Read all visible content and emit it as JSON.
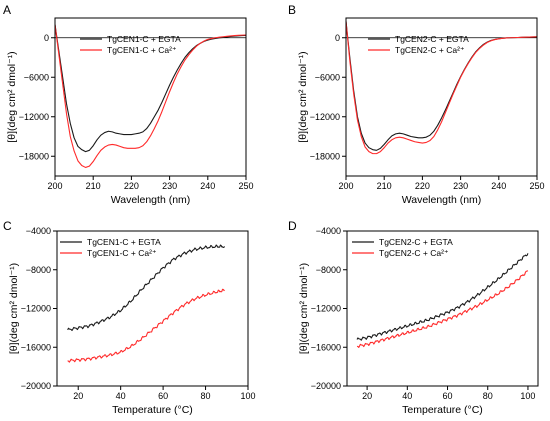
{
  "chart_data": [
    {
      "panel": "A",
      "type": "line",
      "xlabel": "Wavelength (nm)",
      "ylabel": "[θ](deg cm² dmol⁻¹)",
      "xlim": [
        200,
        250
      ],
      "ylim": [
        -21000,
        3000
      ],
      "xticks": [
        200,
        210,
        220,
        230,
        240,
        250
      ],
      "yticks": [
        0,
        -6000,
        -12000,
        -18000
      ],
      "zero_line": true,
      "legend_position": "upper-middle",
      "series": [
        {
          "name": "TgCEN1-C + EGTA",
          "color": "#1a1a1a",
          "x": [
            200,
            201,
            202,
            203,
            204,
            205,
            206,
            207,
            208,
            209,
            210,
            211,
            212,
            213,
            214,
            215,
            216,
            217,
            218,
            219,
            220,
            221,
            222,
            223,
            224,
            225,
            226,
            227,
            228,
            229,
            230,
            231,
            232,
            233,
            234,
            235,
            236,
            237,
            238,
            239,
            240,
            241,
            242,
            243,
            244,
            245,
            246,
            247,
            248,
            249,
            250
          ],
          "y": [
            2000,
            -2000,
            -6000,
            -10000,
            -13000,
            -15200,
            -16500,
            -17000,
            -17300,
            -17100,
            -16400,
            -15500,
            -14800,
            -14400,
            -14200,
            -14300,
            -14500,
            -14600,
            -14700,
            -14700,
            -14700,
            -14600,
            -14500,
            -14300,
            -13800,
            -13000,
            -12000,
            -11000,
            -9800,
            -8500,
            -7200,
            -6000,
            -4900,
            -3900,
            -3000,
            -2300,
            -1700,
            -1200,
            -850,
            -550,
            -350,
            -200,
            -100,
            -20,
            50,
            120,
            200,
            260,
            300,
            330,
            350
          ]
        },
        {
          "name": "TgCEN1-C + Ca²⁺",
          "color": "#ff2a2a",
          "x": [
            200,
            201,
            202,
            203,
            204,
            205,
            206,
            207,
            208,
            209,
            210,
            211,
            212,
            213,
            214,
            215,
            216,
            217,
            218,
            219,
            220,
            221,
            222,
            223,
            224,
            225,
            226,
            227,
            228,
            229,
            230,
            231,
            232,
            233,
            234,
            235,
            236,
            237,
            238,
            239,
            240,
            241,
            242,
            243,
            244,
            245,
            246,
            247,
            248,
            249,
            250
          ],
          "y": [
            2000,
            -2500,
            -7000,
            -11500,
            -15000,
            -17200,
            -18700,
            -19400,
            -19700,
            -19500,
            -18800,
            -17900,
            -17100,
            -16600,
            -16300,
            -16200,
            -16300,
            -16500,
            -16700,
            -16800,
            -16800,
            -16800,
            -16700,
            -16400,
            -15800,
            -14900,
            -13800,
            -12600,
            -11200,
            -9700,
            -8200,
            -6800,
            -5500,
            -4400,
            -3400,
            -2600,
            -1900,
            -1300,
            -850,
            -500,
            -250,
            -100,
            0,
            80,
            150,
            220,
            280,
            330,
            370,
            400,
            420
          ]
        }
      ]
    },
    {
      "panel": "B",
      "type": "line",
      "xlabel": "Wavelength (nm)",
      "ylabel": "[θ](deg cm² dmol⁻¹)",
      "xlim": [
        200,
        250
      ],
      "ylim": [
        -21000,
        3000
      ],
      "xticks": [
        200,
        210,
        220,
        230,
        240,
        250
      ],
      "yticks": [
        0,
        -6000,
        -12000,
        -18000
      ],
      "zero_line": true,
      "legend_position": "upper-middle",
      "series": [
        {
          "name": "TgCEN2-C + EGTA",
          "color": "#1a1a1a",
          "x": [
            200,
            201,
            202,
            203,
            204,
            205,
            206,
            207,
            208,
            209,
            210,
            211,
            212,
            213,
            214,
            215,
            216,
            217,
            218,
            219,
            220,
            221,
            222,
            223,
            224,
            225,
            226,
            227,
            228,
            229,
            230,
            231,
            232,
            233,
            234,
            235,
            236,
            237,
            238,
            239,
            240,
            241,
            242,
            243,
            244,
            245,
            246,
            247,
            248,
            249,
            250
          ],
          "y": [
            2500,
            -3000,
            -8000,
            -12000,
            -14500,
            -16000,
            -16700,
            -17000,
            -17100,
            -16800,
            -16200,
            -15500,
            -14900,
            -14600,
            -14500,
            -14600,
            -14800,
            -15000,
            -15100,
            -15200,
            -15200,
            -15100,
            -14800,
            -14200,
            -13300,
            -12200,
            -11000,
            -9700,
            -8400,
            -7100,
            -5900,
            -4800,
            -3800,
            -2900,
            -2100,
            -1500,
            -1000,
            -650,
            -400,
            -250,
            -150,
            -80,
            -30,
            0,
            20,
            40,
            60,
            80,
            100,
            120,
            150
          ]
        },
        {
          "name": "TgCEN2-C + Ca²⁺",
          "color": "#ff2a2a",
          "x": [
            200,
            201,
            202,
            203,
            204,
            205,
            206,
            207,
            208,
            209,
            210,
            211,
            212,
            213,
            214,
            215,
            216,
            217,
            218,
            219,
            220,
            221,
            222,
            223,
            224,
            225,
            226,
            227,
            228,
            229,
            230,
            231,
            232,
            233,
            234,
            235,
            236,
            237,
            238,
            239,
            240,
            241,
            242,
            243,
            244,
            245,
            246,
            247,
            248,
            249,
            250
          ],
          "y": [
            2500,
            -3500,
            -8500,
            -12500,
            -15000,
            -16600,
            -17300,
            -17600,
            -17600,
            -17300,
            -16700,
            -16000,
            -15500,
            -15200,
            -15100,
            -15200,
            -15400,
            -15600,
            -15800,
            -15900,
            -16000,
            -15900,
            -15600,
            -15000,
            -14000,
            -12800,
            -11400,
            -10000,
            -8600,
            -7300,
            -6000,
            -4900,
            -3900,
            -3000,
            -2200,
            -1600,
            -1100,
            -700,
            -450,
            -280,
            -160,
            -80,
            -30,
            0,
            20,
            40,
            60,
            80,
            100,
            120,
            150
          ]
        }
      ]
    },
    {
      "panel": "C",
      "type": "line",
      "xlabel": "Temperature (°C)",
      "ylabel": "[θ](deg cm² dmol⁻¹)",
      "xlim": [
        10,
        100
      ],
      "ylim": [
        -20000,
        -4000
      ],
      "xticks": [
        20,
        40,
        60,
        80,
        100
      ],
      "yticks": [
        -4000,
        -8000,
        -12000,
        -16000,
        -20000
      ],
      "legend_position": "top-left",
      "series": [
        {
          "name": "TgCEN1-C + EGTA",
          "color": "#1a1a1a",
          "x": [
            15,
            20,
            25,
            30,
            35,
            40,
            45,
            50,
            55,
            60,
            65,
            70,
            75,
            80,
            85,
            89
          ],
          "y": [
            -14200,
            -14000,
            -13800,
            -13400,
            -12900,
            -12200,
            -11200,
            -10000,
            -8900,
            -7800,
            -6900,
            -6300,
            -5900,
            -5700,
            -5600,
            -5600
          ]
        },
        {
          "name": "TgCEN1-C + Ca²⁺",
          "color": "#ff2a2a",
          "x": [
            15,
            20,
            25,
            30,
            35,
            40,
            45,
            50,
            55,
            60,
            65,
            70,
            75,
            80,
            85,
            89
          ],
          "y": [
            -17400,
            -17300,
            -17200,
            -17000,
            -16800,
            -16500,
            -15900,
            -15100,
            -14200,
            -13300,
            -12400,
            -11600,
            -11000,
            -10600,
            -10300,
            -10100
          ]
        }
      ]
    },
    {
      "panel": "D",
      "type": "line",
      "xlabel": "Temperature (°C)",
      "ylabel": "[θ](deg cm² dmol⁻¹)",
      "xlim": [
        10,
        105
      ],
      "ylim": [
        -20000,
        -4000
      ],
      "xticks": [
        20,
        40,
        60,
        80,
        100
      ],
      "yticks": [
        -4000,
        -8000,
        -12000,
        -16000,
        -20000
      ],
      "legend_position": "top-left",
      "series": [
        {
          "name": "TgCEN2-C + EGTA",
          "color": "#1a1a1a",
          "x": [
            15,
            20,
            25,
            30,
            35,
            40,
            45,
            50,
            55,
            60,
            65,
            70,
            75,
            80,
            85,
            90,
            95,
            100
          ],
          "y": [
            -15200,
            -15000,
            -14700,
            -14400,
            -14100,
            -13800,
            -13500,
            -13200,
            -12800,
            -12400,
            -11900,
            -11300,
            -10600,
            -9800,
            -9000,
            -8100,
            -7200,
            -6300
          ]
        },
        {
          "name": "TgCEN2-C + Ca²⁺",
          "color": "#ff2a2a",
          "x": [
            15,
            20,
            25,
            30,
            35,
            40,
            45,
            50,
            55,
            60,
            65,
            70,
            75,
            80,
            85,
            90,
            95,
            100
          ],
          "y": [
            -15900,
            -15700,
            -15400,
            -15100,
            -14800,
            -14500,
            -14200,
            -13900,
            -13500,
            -13100,
            -12700,
            -12200,
            -11700,
            -11100,
            -10500,
            -9800,
            -9000,
            -8100
          ]
        }
      ]
    }
  ]
}
